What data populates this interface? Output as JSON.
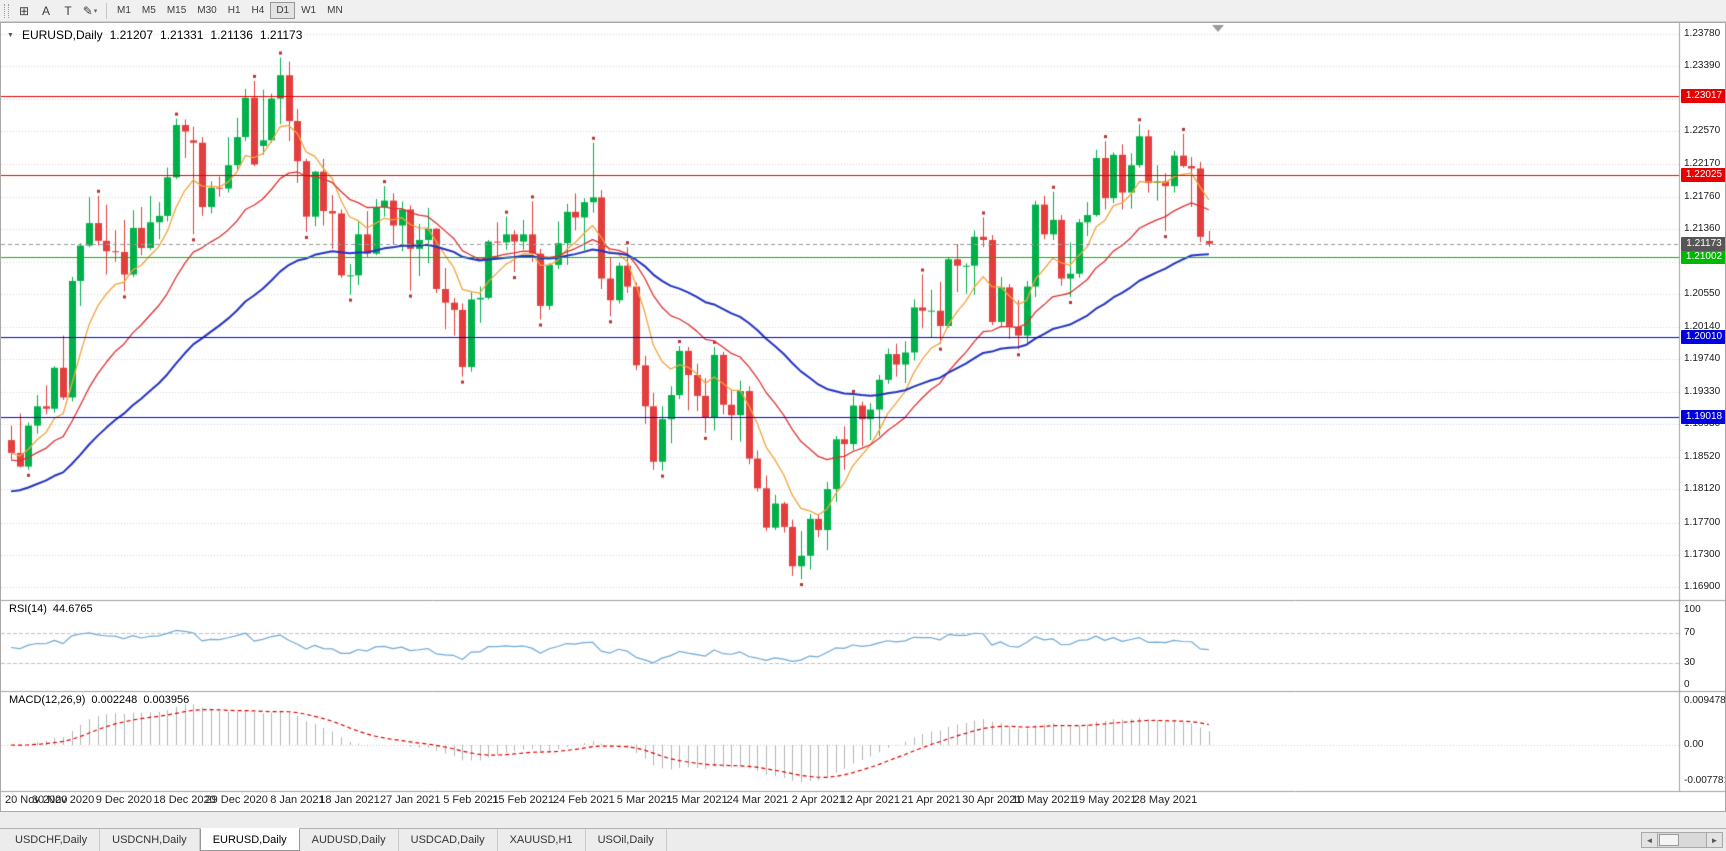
{
  "icons": {
    "collapse_arrow": "▼",
    "dropdown_caret": "▾",
    "tab_scroll_left": "◄",
    "tab_scroll_right": "►"
  },
  "toolbar": {
    "tools": [
      {
        "name": "charts-grid-icon",
        "glyph": "⊞"
      },
      {
        "name": "insert-text-icon",
        "glyph": "A"
      },
      {
        "name": "insert-label-icon",
        "glyph": "T"
      },
      {
        "name": "drawing-tools-icon",
        "glyph": "✎",
        "caret": true
      }
    ],
    "timeframes": [
      {
        "label": "M1",
        "active": false
      },
      {
        "label": "M5",
        "active": false
      },
      {
        "label": "M15",
        "active": false
      },
      {
        "label": "M30",
        "active": false
      },
      {
        "label": "H1",
        "active": false
      },
      {
        "label": "H4",
        "active": false
      },
      {
        "label": "D1",
        "active": true
      },
      {
        "label": "W1",
        "active": false
      },
      {
        "label": "MN",
        "active": false
      }
    ]
  },
  "chart": {
    "symbol_label": "EURUSD,Daily",
    "ohlc": {
      "open": "1.21207",
      "high": "1.21331",
      "low": "1.21136",
      "close": "1.21173"
    }
  },
  "rsi_panel": {
    "label": "RSI(14)",
    "value": "44.6765",
    "axis": [
      "100",
      "70",
      "30",
      "0"
    ]
  },
  "macd_panel": {
    "label": "MACD(12,26,9)",
    "main": "0.002248",
    "signal": "0.003956",
    "axis": [
      "0.009478",
      "0.00",
      "-0.007781"
    ]
  },
  "tabs": [
    {
      "label": "USDCHF,Daily",
      "active": false
    },
    {
      "label": "USDCNH,Daily",
      "active": false
    },
    {
      "label": "EURUSD,Daily",
      "active": true
    },
    {
      "label": "AUDUSD,Daily",
      "active": false
    },
    {
      "label": "USDCAD,Daily",
      "active": false
    },
    {
      "label": "XAUUSD,H1",
      "active": false
    },
    {
      "label": "USOil,Daily",
      "active": false
    }
  ],
  "chart_data": {
    "type": "candlestick",
    "symbol": "EURUSD",
    "period": "Daily",
    "title": "EURUSD,Daily 1.21207 1.21331 1.21136 1.21173",
    "price_axis": {
      "range": [
        1.1674,
        1.2392
      ],
      "ticks": [
        "1.23780",
        "1.23390",
        "1.22980",
        "1.22570",
        "1.22170",
        "1.21760",
        "1.21360",
        "1.20950",
        "1.20550",
        "1.20140",
        "1.19740",
        "1.19330",
        "1.18930",
        "1.18520",
        "1.18120",
        "1.17700",
        "1.17300",
        "1.16900"
      ]
    },
    "current_price": {
      "value": 1.21173,
      "label": "1.21173"
    },
    "hlines": [
      {
        "price": 1.23017,
        "label": "1.23017",
        "color": "#e60000"
      },
      {
        "price": 1.22025,
        "label": "1.22025",
        "color": "#e60000"
      },
      {
        "price": 1.21002,
        "label": "1.21002",
        "color": "#00b800"
      },
      {
        "price": 1.2001,
        "label": "1.20010",
        "color": "#0000e0"
      },
      {
        "price": 1.19018,
        "label": "1.19018",
        "color": "#0000e0"
      }
    ],
    "moving_averages": [
      {
        "name": "ma-fast",
        "period": 8,
        "color": "#f2a33c"
      },
      {
        "name": "ma-medium",
        "period": 20,
        "color": "#e03030"
      },
      {
        "name": "ma-slow",
        "period": 45,
        "color": "#2233c4"
      }
    ],
    "colors": {
      "up": "#00b04a",
      "down": "#e43d3d",
      "grid": "#d4d4d4",
      "bid_line": "#9a9a9a",
      "bid_badge": "#565656",
      "fractal": "#b83232"
    },
    "rsi": {
      "period": 14,
      "color": "#6fa8d6",
      "levels": [
        70,
        30
      ],
      "range": [
        0,
        100
      ]
    },
    "macd": {
      "fast": 12,
      "slow": 26,
      "signal_period": 9,
      "hist_color": "#b4b4b4",
      "signal_color": "#e00000",
      "axis_values": [
        0.009478,
        0,
        -0.007781
      ]
    },
    "date_ticks": [
      {
        "label": "20 Nov 2020",
        "index": 0
      },
      {
        "label": "30 Nov 2020",
        "index": 6
      },
      {
        "label": "9 Dec 2020",
        "index": 13
      },
      {
        "label": "18 Dec 2020",
        "index": 20
      },
      {
        "label": "29 Dec 2020",
        "index": 26
      },
      {
        "label": "8 Jan 2021",
        "index": 33
      },
      {
        "label": "18 Jan 2021",
        "index": 39
      },
      {
        "label": "27 Jan 2021",
        "index": 46
      },
      {
        "label": "5 Feb 2021",
        "index": 53
      },
      {
        "label": "15 Feb 2021",
        "index": 59
      },
      {
        "label": "24 Feb 2021",
        "index": 66
      },
      {
        "label": "5 Mar 2021",
        "index": 73
      },
      {
        "label": "15 Mar 2021",
        "index": 79
      },
      {
        "label": "24 Mar 2021",
        "index": 86
      },
      {
        "label": "2 Apr 2021",
        "index": 93
      },
      {
        "label": "12 Apr 2021",
        "index": 99
      },
      {
        "label": "21 Apr 2021",
        "index": 106
      },
      {
        "label": "30 Apr 2021",
        "index": 113
      },
      {
        "label": "10 May 2021",
        "index": 119
      },
      {
        "label": "19 May 2021",
        "index": 126
      },
      {
        "label": "28 May 2021",
        "index": 133
      }
    ],
    "candles": [
      [
        1.1873,
        1.1891,
        1.1849,
        1.1857
      ],
      [
        1.1857,
        1.1906,
        1.1839,
        1.184
      ],
      [
        1.184,
        1.1895,
        1.1836,
        1.1891
      ],
      [
        1.1891,
        1.1929,
        1.1881,
        1.1915
      ],
      [
        1.1915,
        1.1941,
        1.1905,
        1.1912
      ],
      [
        1.1912,
        1.1965,
        1.1907,
        1.1963
      ],
      [
        1.1963,
        1.2003,
        1.1923,
        1.1926
      ],
      [
        1.1926,
        1.2076,
        1.1921,
        1.2071
      ],
      [
        1.2071,
        1.2118,
        1.204,
        1.2115
      ],
      [
        1.2115,
        1.2175,
        1.2113,
        1.2143
      ],
      [
        1.2143,
        1.2177,
        1.2115,
        1.2121
      ],
      [
        1.2121,
        1.2166,
        1.2079,
        1.2108
      ],
      [
        1.2108,
        1.2134,
        1.2095,
        1.2107
      ],
      [
        1.2107,
        1.2147,
        1.2058,
        1.2079
      ],
      [
        1.2079,
        1.2159,
        1.2076,
        1.2137
      ],
      [
        1.2137,
        1.2163,
        1.2103,
        1.2112
      ],
      [
        1.2112,
        1.2177,
        1.211,
        1.2144
      ],
      [
        1.2144,
        1.2169,
        1.2123,
        1.2152
      ],
      [
        1.2152,
        1.2212,
        1.2145,
        1.22
      ],
      [
        1.22,
        1.2273,
        1.2198,
        1.2265
      ],
      [
        1.2265,
        1.2272,
        1.2224,
        1.2257
      ],
      [
        1.2246,
        1.2263,
        1.2129,
        1.2243
      ],
      [
        1.2243,
        1.225,
        1.2152,
        1.2163
      ],
      [
        1.2163,
        1.2195,
        1.2155,
        1.2187
      ],
      [
        1.2187,
        1.2201,
        1.2176,
        1.2186
      ],
      [
        1.2186,
        1.225,
        1.2181,
        1.2215
      ],
      [
        1.2215,
        1.2274,
        1.2209,
        1.225
      ],
      [
        1.225,
        1.231,
        1.2245,
        1.2299
      ],
      [
        1.2299,
        1.232,
        1.2214,
        1.2216
      ],
      [
        1.2239,
        1.2309,
        1.2228,
        1.2246
      ],
      [
        1.2246,
        1.2304,
        1.2243,
        1.2298
      ],
      [
        1.2298,
        1.2349,
        1.2266,
        1.2327
      ],
      [
        1.2327,
        1.2344,
        1.2245,
        1.227
      ],
      [
        1.227,
        1.2285,
        1.2193,
        1.222
      ],
      [
        1.222,
        1.2223,
        1.2132,
        1.2151
      ],
      [
        1.2151,
        1.2208,
        1.2139,
        1.2207
      ],
      [
        1.2207,
        1.2223,
        1.214,
        1.2158
      ],
      [
        1.2158,
        1.2178,
        1.2111,
        1.2155
      ],
      [
        1.2155,
        1.216,
        1.2075,
        1.2078
      ],
      [
        1.2078,
        1.2092,
        1.2054,
        1.2078
      ],
      [
        1.2078,
        1.2145,
        1.2066,
        1.2129
      ],
      [
        1.2129,
        1.2158,
        1.2101,
        1.2105
      ],
      [
        1.2105,
        1.2173,
        1.2103,
        1.2163
      ],
      [
        1.2163,
        1.2189,
        1.2151,
        1.2171
      ],
      [
        1.2171,
        1.218,
        1.2116,
        1.214
      ],
      [
        1.214,
        1.217,
        1.2108,
        1.216
      ],
      [
        1.216,
        1.2165,
        1.2059,
        1.2111
      ],
      [
        1.2111,
        1.2142,
        1.2077,
        1.2122
      ],
      [
        1.2122,
        1.2162,
        1.2093,
        1.2136
      ],
      [
        1.2136,
        1.2137,
        1.2056,
        1.2061
      ],
      [
        1.2061,
        1.2087,
        1.2011,
        1.2044
      ],
      [
        1.2044,
        1.205,
        1.2003,
        1.2035
      ],
      [
        1.2035,
        1.2043,
        1.1952,
        1.1964
      ],
      [
        1.1964,
        1.2057,
        1.1958,
        1.2048
      ],
      [
        1.2048,
        1.2064,
        1.2019,
        1.205
      ],
      [
        1.205,
        1.2122,
        1.2048,
        1.212
      ],
      [
        1.212,
        1.2144,
        1.21,
        1.2119
      ],
      [
        1.2119,
        1.2151,
        1.211,
        1.2129
      ],
      [
        1.2129,
        1.2134,
        1.2082,
        1.212
      ],
      [
        1.212,
        1.2147,
        1.211,
        1.2129
      ],
      [
        1.2129,
        1.217,
        1.2095,
        1.2105
      ],
      [
        1.2105,
        1.2111,
        1.2023,
        1.204
      ],
      [
        1.204,
        1.2093,
        1.2035,
        1.2091
      ],
      [
        1.2091,
        1.2145,
        1.2086,
        1.2118
      ],
      [
        1.2118,
        1.2167,
        1.2091,
        1.2157
      ],
      [
        1.2157,
        1.218,
        1.2134,
        1.215
      ],
      [
        1.215,
        1.2174,
        1.2109,
        1.2169
      ],
      [
        1.2169,
        1.2243,
        1.2156,
        1.2175
      ],
      [
        1.2175,
        1.2184,
        1.2061,
        1.2074
      ],
      [
        1.2074,
        1.2101,
        1.2027,
        1.2047
      ],
      [
        1.2047,
        1.2094,
        1.2043,
        1.209
      ],
      [
        1.209,
        1.2113,
        1.2056,
        1.2064
      ],
      [
        1.2064,
        1.2069,
        1.196,
        1.1966
      ],
      [
        1.1966,
        1.1978,
        1.1893,
        1.1915
      ],
      [
        1.1915,
        1.1932,
        1.1836,
        1.1846
      ],
      [
        1.1846,
        1.1915,
        1.1835,
        1.1899
      ],
      [
        1.1899,
        1.194,
        1.1869,
        1.1929
      ],
      [
        1.1929,
        1.199,
        1.1924,
        1.1984
      ],
      [
        1.1984,
        1.1989,
        1.191,
        1.1954
      ],
      [
        1.1954,
        1.1968,
        1.1909,
        1.1928
      ],
      [
        1.1928,
        1.195,
        1.1882,
        1.1901
      ],
      [
        1.1901,
        1.1989,
        1.1885,
        1.1979
      ],
      [
        1.1979,
        1.1983,
        1.1905,
        1.1917
      ],
      [
        1.1917,
        1.1936,
        1.1873,
        1.1904
      ],
      [
        1.1904,
        1.1947,
        1.1871,
        1.1934
      ],
      [
        1.1934,
        1.194,
        1.1843,
        1.185
      ],
      [
        1.185,
        1.186,
        1.1809,
        1.1813
      ],
      [
        1.1813,
        1.1829,
        1.176,
        1.1764
      ],
      [
        1.1764,
        1.1805,
        1.1761,
        1.1794
      ],
      [
        1.1794,
        1.1796,
        1.1758,
        1.1765
      ],
      [
        1.1765,
        1.1774,
        1.1704,
        1.1716
      ],
      [
        1.1716,
        1.176,
        1.17,
        1.1729
      ],
      [
        1.1729,
        1.1781,
        1.1712,
        1.1775
      ],
      [
        1.1775,
        1.1781,
        1.1752,
        1.1761
      ],
      [
        1.1761,
        1.1821,
        1.1736,
        1.1812
      ],
      [
        1.1812,
        1.1878,
        1.1796,
        1.1874
      ],
      [
        1.1874,
        1.189,
        1.1836,
        1.1868
      ],
      [
        1.1868,
        1.1928,
        1.186,
        1.1916
      ],
      [
        1.1916,
        1.1921,
        1.1865,
        1.1899
      ],
      [
        1.1899,
        1.1919,
        1.1873,
        1.1911
      ],
      [
        1.1911,
        1.1954,
        1.1878,
        1.1948
      ],
      [
        1.1948,
        1.1987,
        1.1943,
        1.198
      ],
      [
        1.198,
        1.1993,
        1.1952,
        1.1967
      ],
      [
        1.1967,
        1.1996,
        1.1944,
        1.1982
      ],
      [
        1.1982,
        1.2048,
        1.1972,
        1.2038
      ],
      [
        1.2038,
        1.2079,
        1.2012,
        1.2034
      ],
      [
        1.2034,
        1.206,
        1.2001,
        1.2034
      ],
      [
        1.2034,
        1.207,
        1.1993,
        1.2015
      ],
      [
        1.2015,
        1.2101,
        1.2013,
        1.2098
      ],
      [
        1.2098,
        1.2117,
        1.2057,
        1.209
      ],
      [
        1.209,
        1.2093,
        1.2055,
        1.209
      ],
      [
        1.209,
        1.2134,
        1.2054,
        1.2126
      ],
      [
        1.2126,
        1.215,
        1.2113,
        1.2122
      ],
      [
        1.2122,
        1.2128,
        1.2016,
        1.202
      ],
      [
        1.202,
        1.2076,
        1.2013,
        1.2063
      ],
      [
        1.2063,
        1.2067,
        1.1999,
        1.2014
      ],
      [
        1.2014,
        1.2047,
        1.1986,
        1.2003
      ],
      [
        1.2003,
        1.2071,
        1.1993,
        1.2064
      ],
      [
        1.2064,
        1.2171,
        1.2051,
        1.2166
      ],
      [
        1.2166,
        1.2177,
        1.2123,
        1.2129
      ],
      [
        1.2129,
        1.2182,
        1.2122,
        1.2147
      ],
      [
        1.2147,
        1.2153,
        1.2065,
        1.2074
      ],
      [
        1.2074,
        1.2119,
        1.2051,
        1.208
      ],
      [
        1.208,
        1.2148,
        1.2075,
        1.2144
      ],
      [
        1.2144,
        1.2169,
        1.2127,
        1.2153
      ],
      [
        1.2153,
        1.2234,
        1.2151,
        1.2224
      ],
      [
        1.2224,
        1.2245,
        1.216,
        1.2174
      ],
      [
        1.2174,
        1.2231,
        1.2168,
        1.2228
      ],
      [
        1.2228,
        1.2241,
        1.216,
        1.2181
      ],
      [
        1.2181,
        1.223,
        1.2161,
        1.2215
      ],
      [
        1.2215,
        1.2266,
        1.2212,
        1.2251
      ],
      [
        1.2251,
        1.2259,
        1.2181,
        1.2193
      ],
      [
        1.2193,
        1.2215,
        1.2171,
        1.2195
      ],
      [
        1.2195,
        1.2205,
        1.2133,
        1.2189
      ],
      [
        1.2189,
        1.2233,
        1.2181,
        1.2227
      ],
      [
        1.2227,
        1.2254,
        1.2212,
        1.2214
      ],
      [
        1.2214,
        1.2225,
        1.2163,
        1.2211
      ],
      [
        1.2211,
        1.2219,
        1.2119,
        1.2126
      ],
      [
        1.21207,
        1.21331,
        1.21136,
        1.21173
      ]
    ]
  }
}
